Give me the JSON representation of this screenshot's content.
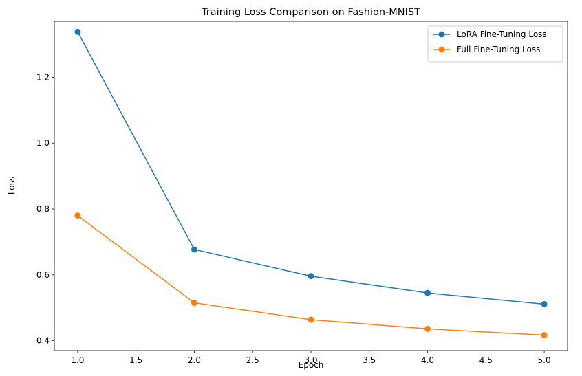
{
  "chart_data": {
    "type": "line",
    "title": "Training Loss Comparison on Fashion-MNIST",
    "xlabel": "Epoch",
    "ylabel": "Loss",
    "x": [
      1,
      2,
      3,
      4,
      5
    ],
    "xlim": [
      0.8,
      5.2
    ],
    "ylim": [
      0.37,
      1.37
    ],
    "xticks": [
      1.0,
      1.5,
      2.0,
      2.5,
      3.0,
      3.5,
      4.0,
      4.5,
      5.0
    ],
    "xtick_labels": [
      "1.0",
      "1.5",
      "2.0",
      "2.5",
      "3.0",
      "3.5",
      "4.0",
      "4.5",
      "5.0"
    ],
    "yticks": [
      0.4,
      0.6,
      0.8,
      1.0,
      1.2
    ],
    "ytick_labels": [
      "0.4",
      "0.6",
      "0.8",
      "1.0",
      "1.2"
    ],
    "grid": false,
    "legend_position": "top-right",
    "series": [
      {
        "name": "LoRA Fine-Tuning Loss",
        "color": "#1f77b4",
        "values": [
          1.338,
          0.677,
          0.596,
          0.545,
          0.511
        ]
      },
      {
        "name": "Full Fine-Tuning Loss",
        "color": "#ff7f0e",
        "values": [
          0.78,
          0.515,
          0.464,
          0.436,
          0.417
        ]
      }
    ]
  }
}
